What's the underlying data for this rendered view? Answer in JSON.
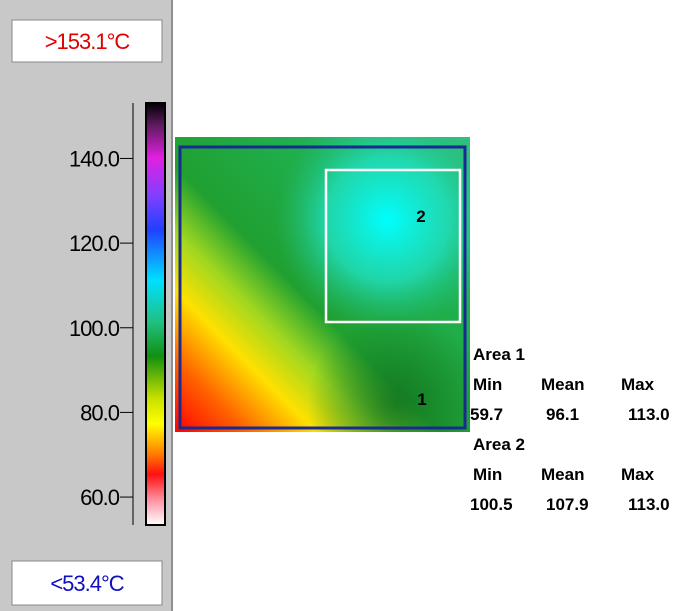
{
  "scale": {
    "max_label": ">153.1°C",
    "min_label": "<53.4°C",
    "range": [
      53.4,
      153.1
    ],
    "ticks": [
      {
        "value": 140,
        "label": "140.0"
      },
      {
        "value": 120,
        "label": "120.0"
      },
      {
        "value": 100,
        "label": "100.0"
      },
      {
        "value": 80,
        "label": "80.0"
      },
      {
        "value": 60,
        "label": "60.0"
      }
    ]
  },
  "image": {
    "markers": [
      "1",
      "2"
    ]
  },
  "areas": [
    {
      "name": "Area 1",
      "headers": [
        "Min",
        "Mean",
        "Max"
      ],
      "values": [
        "59.7",
        "96.1",
        "113.0"
      ]
    },
    {
      "name": "Area 2",
      "headers": [
        "Min",
        "Mean",
        "Max"
      ],
      "values": [
        "100.5",
        "107.9",
        "113.0"
      ]
    }
  ]
}
